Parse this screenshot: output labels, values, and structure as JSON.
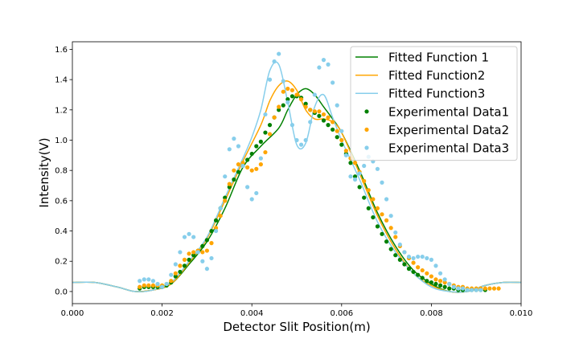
{
  "chart_data": {
    "type": "line",
    "title": "",
    "xlabel": "Detector Slit Position(m)",
    "ylabel": "Intensity(V)",
    "xlim": [
      0.0,
      0.01
    ],
    "ylim": [
      -0.08,
      1.65
    ],
    "xticks": [
      0.0,
      0.002,
      0.004,
      0.006,
      0.008,
      0.01
    ],
    "xtick_labels": [
      "0.000",
      "0.002",
      "0.004",
      "0.006",
      "0.008",
      "0.010"
    ],
    "yticks": [
      0.0,
      0.2,
      0.4,
      0.6,
      0.8,
      1.0,
      1.2,
      1.4,
      1.6
    ],
    "ytick_labels": [
      "0.0",
      "0.2",
      "0.4",
      "0.6",
      "0.8",
      "1.0",
      "1.2",
      "1.4",
      "1.6"
    ],
    "grid": false,
    "legend_position": "top-right",
    "series": [
      {
        "name": "Fitted Function 1",
        "kind": "line",
        "color": "#008000",
        "x": [
          0.0,
          0.0005,
          0.001,
          0.0014,
          0.0018,
          0.0022,
          0.0026,
          0.003,
          0.0034,
          0.0038,
          0.0042,
          0.0046,
          0.0048,
          0.005,
          0.0052,
          0.0054,
          0.0056,
          0.0058,
          0.006,
          0.0064,
          0.0068,
          0.0072,
          0.0076,
          0.008,
          0.0084,
          0.0088,
          0.0092,
          0.0096,
          0.01
        ],
        "y": [
          0.06,
          0.06,
          0.03,
          0.0,
          0.01,
          0.05,
          0.18,
          0.33,
          0.55,
          0.82,
          0.96,
          1.08,
          1.2,
          1.3,
          1.34,
          1.3,
          1.22,
          1.14,
          1.05,
          0.8,
          0.52,
          0.3,
          0.14,
          0.05,
          0.0,
          0.0,
          0.04,
          0.06,
          0.06
        ]
      },
      {
        "name": "Fitted Function2",
        "kind": "line",
        "color": "#FFA500",
        "x": [
          0.0,
          0.0005,
          0.001,
          0.0014,
          0.0018,
          0.0022,
          0.0026,
          0.003,
          0.0034,
          0.0038,
          0.0042,
          0.0044,
          0.0046,
          0.0048,
          0.005,
          0.0052,
          0.0054,
          0.0056,
          0.0058,
          0.006,
          0.0064,
          0.0068,
          0.0072,
          0.0076,
          0.008,
          0.0084,
          0.0088,
          0.0092,
          0.0096,
          0.01
        ],
        "y": [
          0.06,
          0.06,
          0.03,
          0.0,
          0.01,
          0.05,
          0.19,
          0.35,
          0.6,
          0.86,
          1.1,
          1.26,
          1.36,
          1.39,
          1.33,
          1.2,
          1.14,
          1.14,
          1.12,
          1.05,
          0.78,
          0.5,
          0.28,
          0.12,
          0.04,
          0.0,
          0.0,
          0.04,
          0.06,
          0.06
        ]
      },
      {
        "name": "Fitted Function3",
        "kind": "line",
        "color": "#87CEEB",
        "x": [
          0.0,
          0.0005,
          0.001,
          0.0014,
          0.0018,
          0.0022,
          0.0026,
          0.003,
          0.0034,
          0.0038,
          0.004,
          0.0042,
          0.0044,
          0.0046,
          0.0048,
          0.005,
          0.0052,
          0.0054,
          0.0056,
          0.0058,
          0.006,
          0.0064,
          0.0068,
          0.0072,
          0.0076,
          0.008,
          0.0084,
          0.0088,
          0.0092,
          0.0096,
          0.01
        ],
        "y": [
          0.06,
          0.06,
          0.03,
          0.0,
          0.01,
          0.06,
          0.2,
          0.36,
          0.62,
          0.88,
          1.02,
          1.2,
          1.46,
          1.5,
          1.25,
          0.97,
          0.98,
          1.22,
          1.3,
          1.15,
          1.0,
          0.74,
          0.46,
          0.26,
          0.12,
          0.03,
          0.0,
          0.0,
          0.04,
          0.06,
          0.06
        ]
      },
      {
        "name": "Experimental Data1",
        "kind": "scatter",
        "color": "#008000",
        "x": [
          0.0015,
          0.0016,
          0.0017,
          0.0018,
          0.0019,
          0.002,
          0.0021,
          0.0022,
          0.0023,
          0.0024,
          0.0025,
          0.0026,
          0.0027,
          0.0028,
          0.0029,
          0.003,
          0.0031,
          0.0032,
          0.0033,
          0.0034,
          0.0035,
          0.0036,
          0.0037,
          0.0038,
          0.0039,
          0.004,
          0.0041,
          0.0042,
          0.0043,
          0.0044,
          0.0045,
          0.0046,
          0.0047,
          0.0048,
          0.0049,
          0.005,
          0.0051,
          0.0052,
          0.0053,
          0.0054,
          0.0055,
          0.0056,
          0.0057,
          0.0058,
          0.0059,
          0.006,
          0.0061,
          0.0062,
          0.0063,
          0.0064,
          0.0065,
          0.0066,
          0.0067,
          0.0068,
          0.0069,
          0.007,
          0.0071,
          0.0072,
          0.0073,
          0.0074,
          0.0075,
          0.0076,
          0.0077,
          0.0078,
          0.0079,
          0.008,
          0.0081,
          0.0082,
          0.0083,
          0.0084,
          0.0085,
          0.0086,
          0.0087,
          0.0088,
          0.0089,
          0.009,
          0.0091,
          0.0092
        ],
        "y": [
          0.02,
          0.03,
          0.03,
          0.03,
          0.03,
          0.03,
          0.04,
          0.06,
          0.1,
          0.13,
          0.17,
          0.21,
          0.24,
          0.27,
          0.3,
          0.34,
          0.4,
          0.47,
          0.55,
          0.62,
          0.69,
          0.74,
          0.79,
          0.83,
          0.87,
          0.91,
          0.96,
          0.99,
          1.05,
          1.1,
          1.15,
          1.2,
          1.23,
          1.27,
          1.29,
          1.29,
          1.28,
          1.24,
          1.2,
          1.18,
          1.16,
          1.13,
          1.1,
          1.07,
          1.02,
          0.97,
          0.91,
          0.85,
          0.76,
          0.69,
          0.62,
          0.55,
          0.49,
          0.43,
          0.38,
          0.33,
          0.28,
          0.24,
          0.21,
          0.18,
          0.15,
          0.13,
          0.11,
          0.09,
          0.07,
          0.06,
          0.05,
          0.04,
          0.03,
          0.02,
          0.02,
          0.01,
          0.01,
          0.01,
          0.01,
          0.01,
          0.01,
          0.01
        ]
      },
      {
        "name": "Experimental Data2",
        "kind": "scatter",
        "color": "#FFA500",
        "x": [
          0.0015,
          0.0016,
          0.0017,
          0.0018,
          0.0019,
          0.002,
          0.0021,
          0.0022,
          0.0023,
          0.0024,
          0.0025,
          0.0026,
          0.0027,
          0.0028,
          0.0029,
          0.003,
          0.0031,
          0.0032,
          0.0033,
          0.0034,
          0.0035,
          0.0036,
          0.0037,
          0.0038,
          0.0039,
          0.004,
          0.0041,
          0.0042,
          0.0043,
          0.0044,
          0.0045,
          0.0046,
          0.0047,
          0.0048,
          0.0049,
          0.005,
          0.0051,
          0.0052,
          0.0053,
          0.0054,
          0.0055,
          0.0056,
          0.0057,
          0.0058,
          0.0059,
          0.006,
          0.0061,
          0.0062,
          0.0063,
          0.0064,
          0.0065,
          0.0066,
          0.0067,
          0.0068,
          0.0069,
          0.007,
          0.0071,
          0.0072,
          0.0073,
          0.0074,
          0.0075,
          0.0076,
          0.0077,
          0.0078,
          0.0079,
          0.008,
          0.0081,
          0.0082,
          0.0083,
          0.0084,
          0.0085,
          0.0086,
          0.0087,
          0.0088,
          0.0089,
          0.009,
          0.0091,
          0.0092,
          0.0093,
          0.0094,
          0.0095
        ],
        "y": [
          0.03,
          0.04,
          0.04,
          0.04,
          0.04,
          0.04,
          0.05,
          0.07,
          0.12,
          0.17,
          0.21,
          0.25,
          0.26,
          0.27,
          0.26,
          0.27,
          0.32,
          0.42,
          0.5,
          0.6,
          0.71,
          0.8,
          0.84,
          0.85,
          0.82,
          0.8,
          0.81,
          0.84,
          0.92,
          1.04,
          1.15,
          1.22,
          1.32,
          1.34,
          1.33,
          1.3,
          1.27,
          1.22,
          1.2,
          1.19,
          1.19,
          1.17,
          1.15,
          1.12,
          1.06,
          1.0,
          0.93,
          0.88,
          0.85,
          0.79,
          0.73,
          0.67,
          0.61,
          0.55,
          0.51,
          0.47,
          0.42,
          0.36,
          0.3,
          0.26,
          0.22,
          0.19,
          0.16,
          0.14,
          0.12,
          0.1,
          0.08,
          0.07,
          0.06,
          0.05,
          0.04,
          0.03,
          0.03,
          0.02,
          0.02,
          0.02,
          0.02,
          0.02,
          0.02,
          0.02,
          0.02
        ]
      },
      {
        "name": "Experimental Data3",
        "kind": "scatter",
        "color": "#87CEEB",
        "x": [
          0.0015,
          0.0016,
          0.0017,
          0.0018,
          0.0019,
          0.002,
          0.0021,
          0.0022,
          0.0023,
          0.0024,
          0.0025,
          0.0026,
          0.0027,
          0.0028,
          0.0029,
          0.003,
          0.0031,
          0.0032,
          0.0033,
          0.0034,
          0.0035,
          0.0036,
          0.0037,
          0.0038,
          0.0039,
          0.004,
          0.0041,
          0.0042,
          0.0043,
          0.0044,
          0.0045,
          0.0046,
          0.0047,
          0.0048,
          0.0049,
          0.005,
          0.0051,
          0.0052,
          0.0053,
          0.0054,
          0.0055,
          0.0056,
          0.0057,
          0.0058,
          0.0059,
          0.006,
          0.0061,
          0.0062,
          0.0063,
          0.0064,
          0.0065,
          0.0066,
          0.0067,
          0.0068,
          0.0069,
          0.007,
          0.0071,
          0.0072,
          0.0073,
          0.0074,
          0.0075,
          0.0076,
          0.0077,
          0.0078,
          0.0079,
          0.008,
          0.0081,
          0.0082,
          0.0083,
          0.0084,
          0.0085,
          0.0086,
          0.0087,
          0.0088,
          0.0089,
          0.009,
          0.0091
        ],
        "y": [
          0.07,
          0.08,
          0.08,
          0.07,
          0.05,
          0.03,
          0.05,
          0.11,
          0.18,
          0.26,
          0.36,
          0.38,
          0.36,
          0.26,
          0.2,
          0.15,
          0.22,
          0.4,
          0.55,
          0.76,
          0.94,
          1.01,
          0.96,
          0.83,
          0.69,
          0.61,
          0.65,
          0.88,
          1.17,
          1.4,
          1.52,
          1.57,
          1.39,
          1.25,
          1.1,
          1.0,
          0.97,
          1.0,
          1.12,
          1.3,
          1.48,
          1.53,
          1.5,
          1.38,
          1.23,
          1.06,
          0.9,
          0.76,
          0.74,
          0.78,
          0.83,
          0.89,
          0.86,
          0.81,
          0.72,
          0.61,
          0.5,
          0.39,
          0.31,
          0.26,
          0.23,
          0.22,
          0.23,
          0.23,
          0.22,
          0.21,
          0.17,
          0.12,
          0.08,
          0.05,
          0.03,
          0.02,
          0.02,
          0.01,
          0.01,
          0.01,
          0.01
        ]
      }
    ]
  }
}
